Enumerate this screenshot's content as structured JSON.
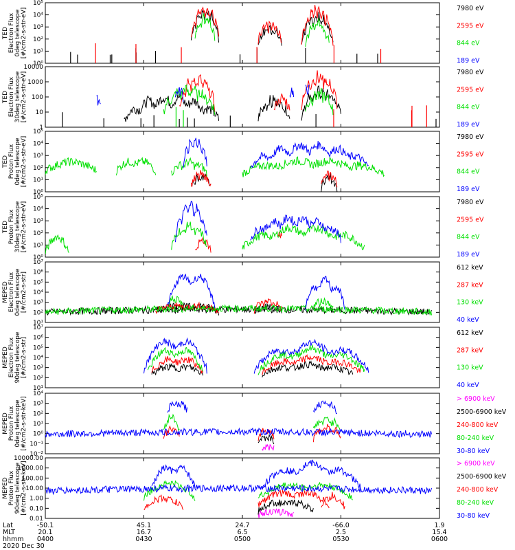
{
  "colors": {
    "black": "#000000",
    "red": "#ff0000",
    "green": "#00e000",
    "blue": "#0000ff",
    "magenta": "#ff00ff"
  },
  "chart_data": [
    {
      "type": "line",
      "log_y": true,
      "instrument": "TED",
      "ylabel": [
        "TED",
        "Electron Flux",
        "0deg telescope",
        "[#/cm2-s-str-eV]"
      ],
      "ylim": [
        1,
        100000
      ],
      "ytick_labels": [
        "10⁰",
        "10¹",
        "10²",
        "10³",
        "10⁴",
        "10⁵"
      ],
      "ytick_values": [
        1,
        10,
        100,
        1000,
        10000,
        100000
      ],
      "series": [
        {
          "name": "7980 eV",
          "color": "black",
          "segments": [
            [
              0.37,
              0.44,
              6,
              80,
              30000
            ],
            [
              0.54,
              0.6,
              7,
              30,
              1000
            ],
            [
              0.65,
              0.73,
              8,
              40,
              10000
            ]
          ],
          "sparse": 0.06,
          "sparse_level": 5
        },
        {
          "name": "2595 eV",
          "color": "red",
          "segments": [
            [
              0.37,
              0.44,
              6,
              120,
              60000
            ],
            [
              0.54,
              0.6,
              7,
              40,
              2000
            ],
            [
              0.65,
              0.73,
              8,
              60,
              50000
            ]
          ],
          "sparse": 0.03,
          "sparse_level": 15
        },
        {
          "name": "844 eV",
          "color": "green",
          "segments": [
            [
              0.38,
              0.43,
              6,
              60,
              8000
            ],
            [
              0.66,
              0.72,
              8,
              30,
              3000
            ]
          ],
          "sparse": 0.0,
          "sparse_level": 5
        },
        {
          "name": "189 eV",
          "color": "blue",
          "segments": [],
          "sparse": 0.0,
          "sparse_level": 5
        }
      ]
    },
    {
      "type": "line",
      "log_y": true,
      "instrument": "TED",
      "ylabel": [
        "TED",
        "Electron Flux",
        "30deg telescope",
        "[#/cm2-s-str-eV]"
      ],
      "ylim": [
        1,
        10000
      ],
      "ytick_labels": [
        "1",
        "10",
        "100",
        "1000",
        "10000"
      ],
      "ytick_values": [
        1,
        10,
        100,
        1000,
        10000
      ],
      "series": [
        {
          "name": "7980 eV",
          "color": "black",
          "segments": [
            [
              0.2,
              0.44,
              6,
              3,
              100
            ],
            [
              0.54,
              0.62,
              7,
              3,
              80
            ],
            [
              0.65,
              0.75,
              8,
              5,
              300
            ]
          ],
          "sparse": 0.05,
          "sparse_level": 3
        },
        {
          "name": "2595 eV",
          "color": "red",
          "segments": [
            [
              0.34,
              0.43,
              6,
              20,
              2000
            ],
            [
              0.58,
              0.62,
              7,
              10,
              100
            ],
            [
              0.65,
              0.74,
              8,
              30,
              3000
            ]
          ],
          "sparse": 0.02,
          "sparse_level": 10
        },
        {
          "name": "844 eV",
          "color": "green",
          "segments": [
            [
              0.3,
              0.43,
              6,
              10,
              400
            ],
            [
              0.66,
              0.73,
              8,
              10,
              200
            ]
          ],
          "sparse": 0.01,
          "sparse_level": 10
        },
        {
          "name": "189 eV",
          "color": "blue",
          "segments": [
            [
              0.13,
              0.14,
              1,
              60,
              60
            ],
            [
              0.33,
              0.35,
              2,
              100,
              300
            ],
            [
              0.62,
              0.63,
              1,
              100,
              300
            ],
            [
              0.66,
              0.67,
              1,
              300,
              300
            ]
          ],
          "sparse": 0.0,
          "sparse_level": 10
        }
      ]
    },
    {
      "type": "line",
      "log_y": true,
      "instrument": "TED",
      "ylabel": [
        "TED",
        "Proton Flux",
        "0deg telescope",
        "[#/cm2-s-str-eV]"
      ],
      "ylim": [
        1,
        100000
      ],
      "ytick_labels": [
        "10⁰",
        "10¹",
        "10²",
        "10³",
        "10⁴",
        "10⁵"
      ],
      "ytick_values": [
        1,
        10,
        100,
        1000,
        10000,
        100000
      ],
      "series": [
        {
          "name": "7980 eV",
          "color": "black",
          "segments": [
            [
              0.37,
              0.42,
              5,
              2,
              20
            ],
            [
              0.7,
              0.74,
              6,
              2,
              20
            ]
          ],
          "sparse": 0.0,
          "sparse_level": 3
        },
        {
          "name": "2595 eV",
          "color": "red",
          "segments": [
            [
              0.37,
              0.42,
              5,
              3,
              30
            ],
            [
              0.7,
              0.74,
              6,
              3,
              30
            ]
          ],
          "sparse": 0.0,
          "sparse_level": 3
        },
        {
          "name": "844 eV",
          "color": "green",
          "segments": [
            [
              0.0,
              0.13,
              1,
              50,
              300
            ],
            [
              0.18,
              0.28,
              2,
              50,
              400
            ],
            [
              0.32,
              0.41,
              3,
              30,
              300
            ],
            [
              0.5,
              0.86,
              4,
              30,
              400
            ]
          ],
          "sparse": 0.0,
          "sparse_level": 30
        },
        {
          "name": "189 eV",
          "color": "blue",
          "segments": [
            [
              0.35,
              0.41,
              5,
              100,
              30000
            ],
            [
              0.52,
              0.82,
              6,
              100,
              8000
            ]
          ],
          "sparse": 0.0,
          "sparse_level": 30
        }
      ]
    },
    {
      "type": "line",
      "log_y": true,
      "instrument": "TED",
      "ylabel": [
        "TED",
        "Proton Flux",
        "30deg telescope",
        "[#/cm2-s-str-eV]"
      ],
      "ylim": [
        1,
        100000
      ],
      "ytick_labels": [
        "10⁰",
        "10¹",
        "10²",
        "10³",
        "10⁴",
        "10⁵"
      ],
      "ytick_values": [
        1,
        10,
        100,
        1000,
        10000,
        100000
      ],
      "series": [
        {
          "name": "7980 eV",
          "color": "black",
          "segments": [],
          "sparse": 0.0,
          "sparse_level": 3
        },
        {
          "name": "2595 eV",
          "color": "red",
          "segments": [
            [
              0.38,
              0.42,
              5,
              3,
              30
            ],
            [
              0.59,
              0.6,
              6,
              50,
              100
            ]
          ],
          "sparse": 0.0,
          "sparse_level": 3
        },
        {
          "name": "844 eV",
          "color": "green",
          "segments": [
            [
              0.0,
              0.06,
              1,
              2,
              50
            ],
            [
              0.32,
              0.41,
              3,
              5,
              500
            ],
            [
              0.5,
              0.81,
              4,
              5,
              300
            ]
          ],
          "sparse": 0.0,
          "sparse_level": 10
        },
        {
          "name": "189 eV",
          "color": "blue",
          "segments": [
            [
              0.33,
              0.41,
              5,
              30,
              30000
            ],
            [
              0.52,
              0.75,
              6,
              30,
              2000
            ]
          ],
          "sparse": 0.0,
          "sparse_level": 30
        }
      ]
    },
    {
      "type": "line",
      "log_y": true,
      "instrument": "MEPED",
      "ylabel": [
        "MEPED",
        "Electron Flux",
        "0deg telescope",
        "[#/cm2-s-str]"
      ],
      "ylim": [
        10,
        10000000
      ],
      "ytick_labels": [
        "10¹",
        "10²",
        "10³",
        "10⁴",
        "10⁵",
        "10⁶",
        "10⁷"
      ],
      "ytick_values": [
        10,
        100,
        1000,
        10000,
        100000,
        1000000,
        10000000
      ],
      "series": [
        {
          "name": "612 keV",
          "color": "black",
          "segments": [
            [
              0.0,
              0.98,
              1,
              100,
              200
            ],
            [
              0.28,
              0.44,
              2,
              100,
              600
            ],
            [
              0.53,
              0.6,
              3,
              100,
              400
            ]
          ],
          "sparse": 0.0,
          "sparse_level": 100
        },
        {
          "name": "287 keV",
          "color": "red",
          "segments": [
            [
              0.28,
              0.44,
              2,
              150,
              500
            ],
            [
              0.53,
              0.6,
              3,
              150,
              1500
            ]
          ],
          "sparse": 0.0,
          "sparse_level": 150
        },
        {
          "name": "130 keV",
          "color": "green",
          "segments": [
            [
              0.0,
              0.98,
              1,
              100,
              250
            ],
            [
              0.31,
              0.35,
              2,
              300,
              3000
            ],
            [
              0.68,
              0.73,
              3,
              300,
              1500
            ]
          ],
          "sparse": 0.0,
          "sparse_level": 100
        },
        {
          "name": "40 keV",
          "color": "blue",
          "segments": [
            [
              0.31,
              0.43,
              2,
              300,
              1000000
            ],
            [
              0.66,
              0.76,
              3,
              300,
              200000
            ]
          ],
          "sparse": 0.0,
          "sparse_level": 100
        }
      ]
    },
    {
      "type": "line",
      "log_y": true,
      "instrument": "MEPED",
      "ylabel": [
        "MEPED",
        "Electron Flux",
        "90deg telescope",
        "[#/cm2-s-str]"
      ],
      "ylim": [
        10,
        10000000
      ],
      "ytick_labels": [
        "10¹",
        "10²",
        "10³",
        "10⁴",
        "10⁵",
        "10⁶",
        "10⁷"
      ],
      "ytick_values": [
        10,
        100,
        1000,
        10000,
        100000,
        1000000,
        10000000
      ],
      "series": [
        {
          "name": "612 keV",
          "color": "black",
          "segments": [
            [
              0.27,
              0.4,
              2,
              200,
              1500
            ],
            [
              0.55,
              0.78,
              3,
              200,
              2000
            ]
          ],
          "sparse": 0.0,
          "sparse_level": 100
        },
        {
          "name": "287 keV",
          "color": "red",
          "segments": [
            [
              0.27,
              0.4,
              2,
              300,
              10000
            ],
            [
              0.55,
              0.8,
              3,
              300,
              10000
            ]
          ],
          "sparse": 0.0,
          "sparse_level": 150
        },
        {
          "name": "130 keV",
          "color": "green",
          "segments": [
            [
              0.26,
              0.4,
              2,
              400,
              100000
            ],
            [
              0.54,
              0.81,
              3,
              400,
              80000
            ]
          ],
          "sparse": 0.0,
          "sparse_level": 200
        },
        {
          "name": "40 keV",
          "color": "blue",
          "segments": [
            [
              0.25,
              0.41,
              2,
              500,
              1000000
            ],
            [
              0.53,
              0.82,
              3,
              500,
              300000
            ]
          ],
          "sparse": 0.0,
          "sparse_level": 300
        }
      ]
    },
    {
      "type": "line",
      "log_y": true,
      "instrument": "MEPED",
      "ylabel": [
        "MEPED",
        "Proton Flux",
        "0deg telescope",
        "[#/cm2-s-str-keV]"
      ],
      "ylim": [
        0.01,
        10000
      ],
      "ytick_labels": [
        "10⁻²",
        "10⁻¹",
        "10⁰",
        "10¹",
        "10²",
        "10³",
        "10⁴"
      ],
      "ytick_values": [
        0.01,
        0.1,
        1,
        10,
        100,
        1000,
        10000
      ],
      "series": [
        {
          "name": "> 6900 keV",
          "color": "magenta",
          "segments": [
            [
              0.55,
              0.58,
              2,
              0.03,
              0.05
            ]
          ],
          "sparse": 0.0,
          "sparse_level": 0.03
        },
        {
          "name": "2500-6900 keV",
          "color": "black",
          "segments": [
            [
              0.54,
              0.58,
              2,
              0.2,
              0.5
            ]
          ],
          "sparse": 0.0,
          "sparse_level": 0.2
        },
        {
          "name": "240-800 keV",
          "color": "red",
          "segments": [
            [
              0.3,
              0.34,
              1,
              0.3,
              3
            ],
            [
              0.54,
              0.58,
              2,
              0.3,
              3
            ],
            [
              0.68,
              0.75,
              3,
              0.3,
              5
            ]
          ],
          "sparse": 0.0,
          "sparse_level": 0.3
        },
        {
          "name": "80-240 keV",
          "color": "green",
          "segments": [
            [
              0.3,
              0.34,
              1,
              2,
              50
            ],
            [
              0.68,
              0.75,
              3,
              2,
              30
            ]
          ],
          "sparse": 0.0,
          "sparse_level": 0.5
        },
        {
          "name": "30-80 keV",
          "color": "blue",
          "segments": [
            [
              0.0,
              0.98,
              1,
              0.8,
              1.5
            ],
            [
              0.31,
              0.36,
              2,
              200,
              1000
            ],
            [
              0.68,
              0.74,
              3,
              100,
              2000
            ]
          ],
          "sparse": 0.0,
          "sparse_level": 1
        }
      ]
    },
    {
      "type": "line",
      "log_y": true,
      "instrument": "MEPED",
      "ylabel": [
        "MEPED",
        "Proton Flux",
        "90deg telescope",
        "[#/cm2-s-str-keV]"
      ],
      "ylim": [
        0.01,
        10000
      ],
      "ytick_labels": [
        "0.01",
        "0.10",
        "1.00",
        "10.00",
        "100.00",
        "1000.00",
        "10000.00"
      ],
      "ytick_values": [
        0.01,
        0.1,
        1,
        10,
        100,
        1000,
        10000
      ],
      "series": [
        {
          "name": "> 6900 keV",
          "color": "magenta",
          "segments": [
            [
              0.54,
              0.63,
              2,
              0.02,
              0.05
            ]
          ],
          "sparse": 0.0,
          "sparse_level": 0.02
        },
        {
          "name": "2500-6900 keV",
          "color": "black",
          "segments": [
            [
              0.54,
              0.68,
              2,
              0.05,
              0.5
            ]
          ],
          "sparse": 0.0,
          "sparse_level": 0.05
        },
        {
          "name": "240-800 keV",
          "color": "red",
          "segments": [
            [
              0.25,
              0.35,
              1,
              0.1,
              1
            ],
            [
              0.54,
              0.72,
              2,
              0.2,
              5
            ],
            [
              0.7,
              0.76,
              3,
              0.1,
              2
            ]
          ],
          "sparse": 0.0,
          "sparse_level": 0.2
        },
        {
          "name": "80-240 keV",
          "color": "green",
          "segments": [
            [
              0.25,
              0.38,
              1,
              1,
              30
            ],
            [
              0.54,
              0.78,
              2,
              1,
              30
            ]
          ],
          "sparse": 0.0,
          "sparse_level": 1
        },
        {
          "name": "30-80 keV",
          "color": "blue",
          "segments": [
            [
              0.0,
              0.98,
              1,
              5,
              10
            ],
            [
              0.27,
              0.38,
              2,
              10,
              2000
            ],
            [
              0.55,
              0.8,
              3,
              10,
              3000
            ]
          ],
          "sparse": 0.0,
          "sparse_level": 3
        }
      ]
    }
  ],
  "footer": {
    "row_labels": [
      "Lat",
      "MLT",
      "hhmm",
      "2020 Dec 30"
    ],
    "columns": [
      {
        "lat": "-50.1",
        "mlt": "20.1",
        "hhmm": "0400"
      },
      {
        "lat": "45.1",
        "mlt": "16.7",
        "hhmm": "0430"
      },
      {
        "lat": "24.7",
        "mlt": "6.5",
        "hhmm": "0500"
      },
      {
        "lat": "-66.0",
        "mlt": "2.5",
        "hhmm": "0530"
      },
      {
        "lat": "1.9",
        "mlt": "15.4",
        "hhmm": "0600"
      }
    ]
  }
}
